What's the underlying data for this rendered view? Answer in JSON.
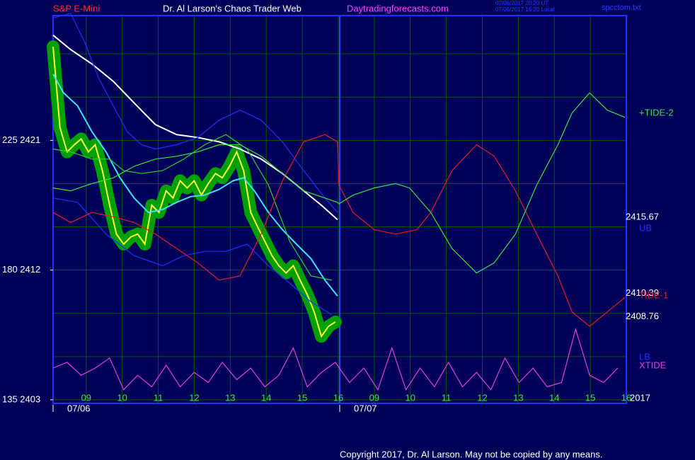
{
  "chart_data": {
    "type": "line",
    "header": {
      "symbol": "S&P E-Mini",
      "title": "Dr. Al Larson's Chaos Trader Web",
      "site": "Daytradingforecasts.com",
      "stamp_ut": "07/06/2017 20:20 UT",
      "stamp_local": "07/06/2017 16:20 Local",
      "file": "spcctom.txt"
    },
    "footer": "Copyright 2017, Dr. Al Larson. May not be copied by any means.",
    "xlim": [
      -0.92,
      15.0
    ],
    "xticks": [
      {
        "value": 0,
        "label": "09"
      },
      {
        "value": 1,
        "label": "10"
      },
      {
        "value": 2,
        "label": "11"
      },
      {
        "value": 3,
        "label": "12"
      },
      {
        "value": 4,
        "label": "13"
      },
      {
        "value": 5,
        "label": "14"
      },
      {
        "value": 6,
        "label": "15"
      },
      {
        "value": 7,
        "label": "16"
      },
      {
        "value": 8,
        "label": "09"
      },
      {
        "value": 9,
        "label": "10"
      },
      {
        "value": 10,
        "label": "11"
      },
      {
        "value": 11,
        "label": "12"
      },
      {
        "value": 12,
        "label": "13"
      },
      {
        "value": 13,
        "label": "14"
      },
      {
        "value": 14,
        "label": "15"
      },
      {
        "value": 15,
        "label": "16"
      }
    ],
    "dates": [
      "07/06",
      "07/07"
    ],
    "year": "2017",
    "ylim": [
      2402.75,
      2429.66
    ],
    "yticks": [
      {
        "value": 2421,
        "label": "225  2421"
      },
      {
        "value": 2412,
        "label": "180  2412"
      },
      {
        "value": 2403,
        "label": "135  2403"
      }
    ],
    "ygrid": [
      2403,
      2406,
      2409,
      2412,
      2415,
      2418,
      2421,
      2424,
      2427
    ],
    "grid": true,
    "price_labels": [
      2415.67,
      2410.39,
      2408.76
    ],
    "series": [
      {
        "color": "#ffff40",
        "x": [
          -0.92,
          -0.73,
          -0.53,
          -0.33,
          -0.14,
          0.06,
          0.25,
          0.45,
          0.65,
          0.84,
          1.04,
          1.24,
          1.43,
          1.63,
          1.82,
          2.02,
          2.22,
          2.41,
          2.61,
          2.8,
          3.0,
          3.2,
          3.39,
          3.59,
          3.78,
          3.98,
          4.18,
          4.37,
          4.57,
          4.76,
          4.96,
          5.16,
          5.35,
          5.55,
          5.75,
          5.94,
          6.14,
          6.33,
          6.53,
          6.73,
          6.92
        ],
        "values": [
          2427.5,
          2421.9,
          2420.2,
          2420.7,
          2421.1,
          2420.2,
          2420.7,
          2418.9,
          2416.5,
          2414.5,
          2413.8,
          2414.3,
          2414.5,
          2413.8,
          2416.5,
          2416.0,
          2417.5,
          2417.0,
          2418.2,
          2417.7,
          2418.2,
          2417.2,
          2418.0,
          2418.7,
          2418.4,
          2419.2,
          2420.2,
          2418.9,
          2416.0,
          2415.0,
          2414.0,
          2413.0,
          2412.3,
          2411.8,
          2412.3,
          2411.3,
          2410.3,
          2409.1,
          2407.4,
          2408.1,
          2408.4
        ]
      },
      {
        "color": "#ffffff",
        "x": [
          -0.92,
          -0.43,
          0.16,
          0.75,
          1.33,
          1.92,
          2.51,
          3.1,
          3.69,
          4.27,
          4.86,
          5.45,
          6.04,
          6.53,
          6.98
        ],
        "values": [
          2428.3,
          2427.3,
          2426.3,
          2425.1,
          2423.6,
          2422.1,
          2421.4,
          2421.2,
          2420.9,
          2420.4,
          2419.7,
          2418.7,
          2417.5,
          2416.5,
          2415.5
        ]
      },
      {
        "color": "#40e0ff",
        "x": [
          -0.92,
          -0.63,
          -0.24,
          0.16,
          0.55,
          0.94,
          1.33,
          1.73,
          2.12,
          2.51,
          2.9,
          3.29,
          3.69,
          4.08,
          4.37,
          4.67,
          5.06,
          5.45,
          5.84,
          6.24,
          6.63,
          6.98
        ],
        "values": [
          2425.6,
          2424.3,
          2423.4,
          2421.6,
          2420.2,
          2418.4,
          2417.0,
          2416.0,
          2416.2,
          2416.7,
          2417.1,
          2417.2,
          2417.6,
          2418.2,
          2418.4,
          2417.5,
          2416.0,
          2414.8,
          2413.8,
          2412.8,
          2411.3,
          2410.2
        ]
      },
      {
        "name": "UB",
        "color": "#2030ff",
        "x": [
          -0.92,
          -0.43,
          -0.04,
          0.35,
          0.75,
          1.14,
          1.53,
          1.92,
          2.51,
          3.1,
          3.69,
          4.27,
          4.86,
          5.45,
          6.04,
          6.63,
          6.98
        ],
        "values": [
          2429.5,
          2429.8,
          2427.8,
          2425.3,
          2423.4,
          2421.6,
          2420.7,
          2420.4,
          2420.7,
          2421.2,
          2422.4,
          2423.1,
          2422.4,
          2420.9,
          2418.9,
          2417.0,
          2416.0
        ]
      },
      {
        "name": "LB",
        "color": "#2030ff",
        "x": [
          -0.92,
          -0.24,
          0.55,
          1.33,
          2.12,
          2.71,
          3.29,
          3.88,
          4.47,
          5.06,
          5.65,
          6.24,
          6.82
        ],
        "values": [
          2417.0,
          2416.7,
          2414.5,
          2413.0,
          2412.3,
          2413.0,
          2413.3,
          2413.3,
          2413.8,
          2412.3,
          2411.1,
          2409.8,
          2408.9
        ]
      },
      {
        "color": "#30d030",
        "x": [
          -0.92,
          -0.43,
          0.16,
          0.65,
          1.04,
          1.53,
          2.12,
          2.71,
          3.29,
          3.88,
          4.47,
          5.06,
          5.65,
          6.24,
          6.82
        ],
        "values": [
          2420.4,
          2420.2,
          2419.7,
          2419.7,
          2418.9,
          2418.7,
          2418.9,
          2419.7,
          2420.7,
          2421.4,
          2420.4,
          2417.9,
          2414.0,
          2411.6,
          2411.3
        ]
      },
      {
        "name": "TIDE-1",
        "color": "#e02020",
        "x": [
          -0.92,
          -0.43,
          0.16,
          0.75,
          1.33,
          1.92,
          2.51,
          3.1,
          3.69,
          4.27,
          4.86,
          5.45,
          6.04,
          6.63,
          6.98,
          7.02,
          7.41,
          8.0,
          8.59,
          9.18,
          9.57,
          10.16,
          10.84,
          11.33,
          11.92,
          12.51,
          13.1,
          13.49,
          13.98,
          14.47,
          14.96
        ],
        "values": [
          2416.0,
          2415.3,
          2416.0,
          2415.7,
          2415.3,
          2414.5,
          2413.5,
          2412.5,
          2411.3,
          2411.6,
          2414.5,
          2418.2,
          2420.9,
          2421.4,
          2420.9,
          2417.9,
          2416.0,
          2414.8,
          2414.5,
          2414.8,
          2416.0,
          2418.9,
          2420.7,
          2419.9,
          2417.5,
          2414.5,
          2411.6,
          2409.1,
          2408.1,
          2409.1,
          2410.1
        ]
      },
      {
        "name": "+TIDE-2",
        "color": "#40e040",
        "x": [
          -0.92,
          -0.43,
          0.16,
          0.75,
          1.33,
          1.92,
          2.51,
          3.1,
          3.69,
          4.27,
          4.86,
          5.45,
          6.04,
          6.63,
          6.98,
          7.02,
          7.41,
          8.0,
          8.59,
          8.98,
          9.57,
          10.16,
          10.84,
          11.33,
          11.92,
          12.51,
          13.1,
          13.49,
          13.98,
          14.47,
          14.96
        ],
        "values": [
          2417.7,
          2417.5,
          2418.0,
          2418.4,
          2419.2,
          2419.7,
          2419.9,
          2420.2,
          2420.7,
          2420.7,
          2419.9,
          2418.7,
          2417.5,
          2417.0,
          2416.7,
          2416.6,
          2417.2,
          2417.7,
          2418.0,
          2417.7,
          2416.0,
          2413.5,
          2411.8,
          2412.5,
          2414.5,
          2417.9,
          2420.7,
          2422.9,
          2424.3,
          2423.1,
          2422.6
        ]
      },
      {
        "name": "XTIDE",
        "color": "#e040e0",
        "x": [
          -0.92,
          -0.53,
          -0.14,
          0.25,
          0.65,
          1.04,
          1.43,
          1.82,
          2.22,
          2.61,
          3.0,
          3.39,
          3.78,
          4.18,
          4.57,
          4.96,
          5.35,
          5.75,
          6.14,
          6.53,
          6.92,
          7.31,
          7.71,
          8.1,
          8.49,
          8.88,
          9.27,
          9.67,
          10.06,
          10.45,
          10.84,
          11.24,
          11.63,
          12.02,
          12.41,
          12.8,
          13.2,
          13.59,
          13.98,
          14.37,
          14.76
        ],
        "values": [
          2405.2,
          2405.6,
          2404.7,
          2405.2,
          2405.9,
          2403.7,
          2404.7,
          2403.9,
          2405.4,
          2403.9,
          2404.9,
          2404.2,
          2405.6,
          2404.4,
          2405.2,
          2403.9,
          2404.7,
          2406.6,
          2403.9,
          2404.9,
          2405.6,
          2404.2,
          2405.2,
          2403.7,
          2406.6,
          2403.7,
          2405.2,
          2403.9,
          2405.6,
          2403.9,
          2404.9,
          2403.7,
          2405.9,
          2404.2,
          2405.2,
          2403.9,
          2404.2,
          2407.9,
          2404.7,
          2404.2,
          2405.2
        ]
      }
    ]
  }
}
